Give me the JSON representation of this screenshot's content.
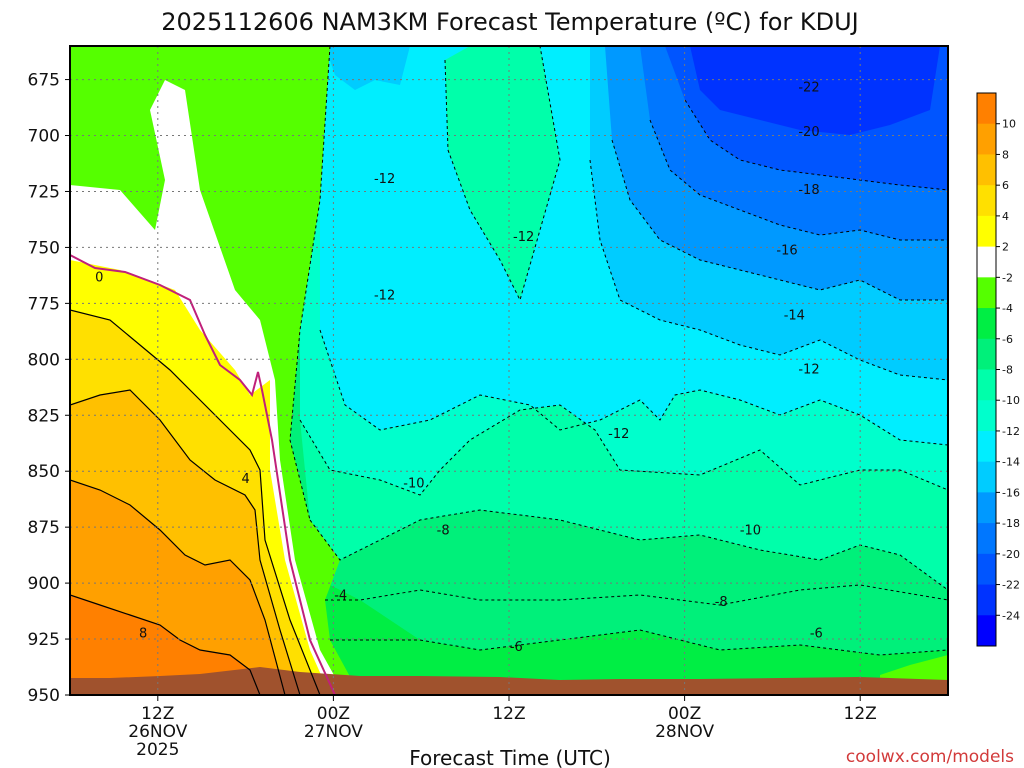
{
  "chart_data": {
    "type": "heatmap",
    "title": "2025112606 NAM3KM Forecast Temperature (ºC) for KDUJ",
    "xlabel": "Forecast Time (UTC)",
    "ylabel": "",
    "credit": "coolwx.com/models",
    "y_ticks": [
      "675",
      "700",
      "725",
      "750",
      "775",
      "800",
      "825",
      "850",
      "875",
      "900",
      "925",
      "950"
    ],
    "ylim": [
      950,
      660
    ],
    "x_ticks": [
      {
        "time": "12Z",
        "date": "26NOV",
        "year": "2025",
        "t": 12
      },
      {
        "time": "00Z",
        "date": "27NOV",
        "year": "",
        "t": 24
      },
      {
        "time": "12Z",
        "date": "",
        "year": "",
        "t": 36
      },
      {
        "time": "00Z",
        "date": "28NOV",
        "year": "",
        "t": 48
      },
      {
        "time": "12Z",
        "date": "",
        "year": "",
        "t": 60
      }
    ],
    "xlim": [
      6,
      66
    ],
    "grid": true,
    "colorbar": {
      "labels": [
        "10",
        "8",
        "6",
        "4",
        "2",
        "-2",
        "-4",
        "-6",
        "-8",
        "-10",
        "-12",
        "-14",
        "-16",
        "-18",
        "-20",
        "-22",
        "-24"
      ],
      "colors": [
        "#ff8000",
        "#ffa000",
        "#ffc000",
        "#ffe000",
        "#ffff00",
        "#ffffff",
        "#55ff00",
        "#00ee44",
        "#00f07a",
        "#00ffaa",
        "#00ffcc",
        "#00eeff",
        "#00ccff",
        "#0099ff",
        "#0077ff",
        "#0055ff",
        "#0033ff",
        "#0000ff"
      ]
    },
    "isotherm_labels": [
      {
        "value": "0",
        "t": 8.0,
        "p": 763
      },
      {
        "value": "4",
        "t": 18.0,
        "p": 853
      },
      {
        "value": "8",
        "t": 11.0,
        "p": 922
      },
      {
        "value": "-4",
        "t": 24.5,
        "p": 905
      },
      {
        "value": "-6",
        "t": 36.5,
        "p": 928
      },
      {
        "value": "-6",
        "t": 57.0,
        "p": 922
      },
      {
        "value": "-8",
        "t": 31.5,
        "p": 876
      },
      {
        "value": "-8",
        "t": 50.5,
        "p": 908
      },
      {
        "value": "-10",
        "t": 29.5,
        "p": 855
      },
      {
        "value": "-10",
        "t": 52.5,
        "p": 876
      },
      {
        "value": "-12",
        "t": 27.5,
        "p": 719
      },
      {
        "value": "-12",
        "t": 37.0,
        "p": 745
      },
      {
        "value": "-12",
        "t": 27.5,
        "p": 771
      },
      {
        "value": "-12",
        "t": 43.5,
        "p": 833
      },
      {
        "value": "-12",
        "t": 56.5,
        "p": 804
      },
      {
        "value": "-14",
        "t": 55.5,
        "p": 780
      },
      {
        "value": "-16",
        "t": 55.0,
        "p": 751
      },
      {
        "value": "-18",
        "t": 56.5,
        "p": 724
      },
      {
        "value": "-20",
        "t": 56.5,
        "p": 698
      },
      {
        "value": "-22",
        "t": 56.5,
        "p": 678
      }
    ]
  }
}
